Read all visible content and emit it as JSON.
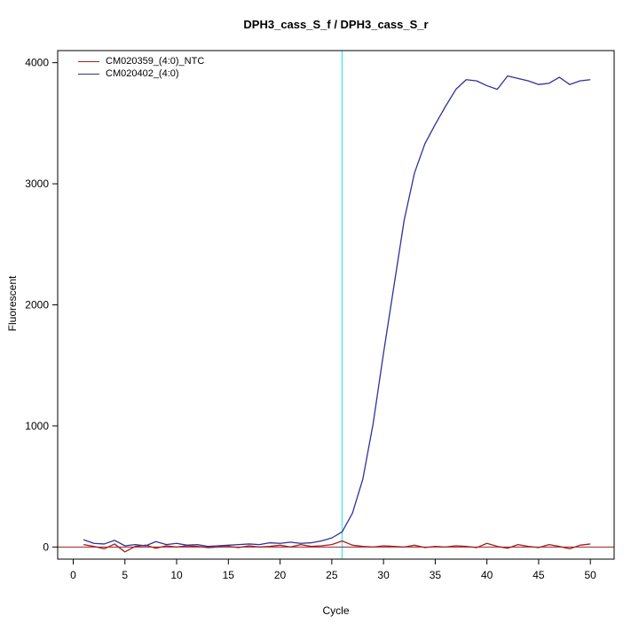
{
  "title": "DPH3_cass_S_f / DPH3_cass_S_r",
  "chart_data": {
    "type": "line",
    "title": "DPH3_cass_S_f / DPH3_cass_S_r",
    "xlabel": "Cycle",
    "ylabel": "Fluorescent",
    "xlim": [
      -1.5,
      52.3
    ],
    "ylim": [
      -100,
      4100
    ],
    "xticks": [
      0,
      5,
      10,
      15,
      20,
      25,
      30,
      35,
      40,
      45,
      50
    ],
    "yticks": [
      0,
      1000,
      2000,
      3000,
      4000
    ],
    "grid": false,
    "legend_position": "top-left",
    "vline": {
      "x": 26,
      "color": "#5ce6ee",
      "label": "threshold-cycle-line"
    },
    "hline": {
      "y": 0,
      "color": "#a02020"
    },
    "cycles": [
      1,
      2,
      3,
      4,
      5,
      6,
      7,
      8,
      9,
      10,
      11,
      12,
      13,
      14,
      15,
      16,
      17,
      18,
      19,
      20,
      21,
      22,
      23,
      24,
      25,
      26,
      27,
      28,
      29,
      30,
      31,
      32,
      33,
      34,
      35,
      36,
      37,
      38,
      39,
      40,
      41,
      42,
      43,
      44,
      45,
      46,
      47,
      48,
      49,
      50
    ],
    "series": [
      {
        "name": "CM020359_(4:0)_NTC",
        "color": "#a02020",
        "values": [
          20,
          5,
          -15,
          25,
          -40,
          5,
          15,
          -10,
          10,
          0,
          10,
          5,
          -5,
          0,
          5,
          -5,
          10,
          0,
          5,
          15,
          0,
          20,
          5,
          10,
          20,
          50,
          15,
          5,
          0,
          10,
          5,
          0,
          15,
          -5,
          5,
          0,
          10,
          5,
          -5,
          30,
          5,
          -10,
          20,
          5,
          -5,
          20,
          5,
          -15,
          15,
          25
        ]
      },
      {
        "name": "CM020402_(4:0)",
        "color": "#30309a",
        "values": [
          60,
          30,
          25,
          55,
          10,
          20,
          10,
          45,
          20,
          30,
          15,
          20,
          5,
          10,
          15,
          20,
          25,
          20,
          35,
          30,
          40,
          30,
          35,
          50,
          75,
          125,
          280,
          560,
          1020,
          1600,
          2150,
          2700,
          3090,
          3330,
          3490,
          3640,
          3780,
          3860,
          3850,
          3810,
          3780,
          3890,
          3870,
          3850,
          3820,
          3830,
          3880,
          3820,
          3850,
          3860
        ]
      }
    ]
  }
}
